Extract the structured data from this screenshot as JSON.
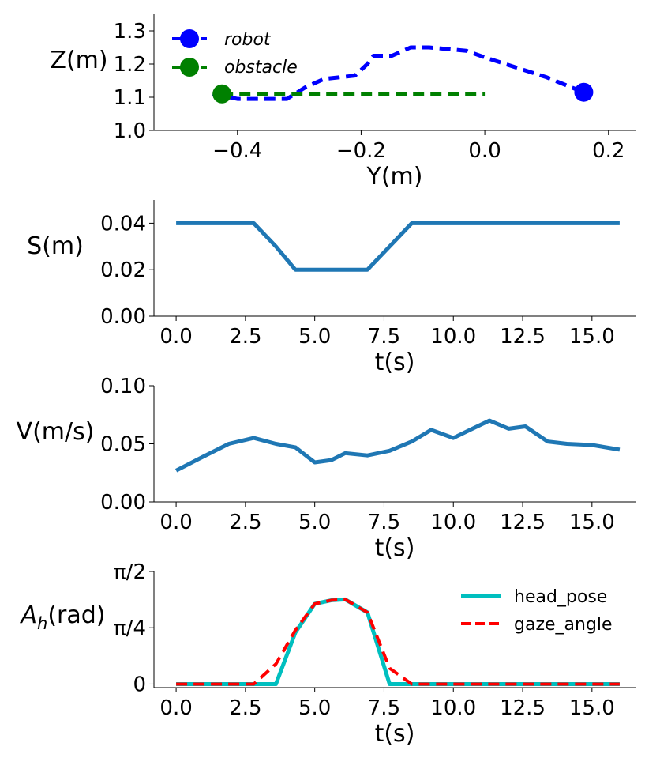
{
  "chart_data": [
    {
      "type": "line",
      "xlabel": "Y(m)",
      "ylabel": "Z(m)",
      "xlim": [
        -0.535,
        0.245
      ],
      "ylim": [
        1.0,
        1.35
      ],
      "xticks": [
        -0.4,
        -0.2,
        0.0,
        0.2
      ],
      "xtick_labels": [
        "−0.4",
        "−0.2",
        "0.0",
        "0.2"
      ],
      "yticks": [
        1.0,
        1.1,
        1.2,
        1.3
      ],
      "ytick_labels": [
        "1.0",
        "1.1",
        "1.2",
        "1.3"
      ],
      "legend_position": "top-left",
      "series": [
        {
          "name": "robot",
          "color": "#0000ff",
          "style": "dashed",
          "end_marker": "circle",
          "x": [
            -0.44,
            -0.4,
            -0.35,
            -0.32,
            -0.29,
            -0.26,
            -0.21,
            -0.19,
            -0.18,
            -0.15,
            -0.12,
            -0.09,
            -0.03,
            0.0,
            0.05,
            0.1,
            0.16
          ],
          "y": [
            1.11,
            1.095,
            1.095,
            1.095,
            1.13,
            1.155,
            1.165,
            1.2,
            1.225,
            1.225,
            1.25,
            1.25,
            1.24,
            1.22,
            1.19,
            1.16,
            1.115
          ]
        },
        {
          "name": "obstacle",
          "color": "#008000",
          "style": "dashed",
          "start_marker": "circle",
          "x": [
            -0.425,
            0.0
          ],
          "y": [
            1.11,
            1.11
          ]
        }
      ]
    },
    {
      "type": "line",
      "xlabel": "t(s)",
      "ylabel": "S(m)",
      "xlim": [
        -0.8,
        16.6
      ],
      "ylim": [
        0.0,
        0.05
      ],
      "xticks": [
        0.0,
        2.5,
        5.0,
        7.5,
        10.0,
        12.5,
        15.0
      ],
      "xtick_labels": [
        "0.0",
        "2.5",
        "5.0",
        "7.5",
        "10.0",
        "12.5",
        "15.0"
      ],
      "yticks": [
        0.0,
        0.02,
        0.04
      ],
      "ytick_labels": [
        "0.00",
        "0.02",
        "0.04"
      ],
      "series": [
        {
          "color": "#1f77b4",
          "style": "solid",
          "x": [
            0.0,
            0.85,
            1.7,
            2.8,
            3.6,
            4.3,
            5.0,
            6.0,
            6.9,
            7.7,
            8.5,
            9.3,
            10.0,
            11.0,
            12.0,
            13.0,
            14.0,
            15.0,
            16.0
          ],
          "y": [
            0.04,
            0.04,
            0.04,
            0.04,
            0.03,
            0.02,
            0.02,
            0.02,
            0.02,
            0.03,
            0.04,
            0.04,
            0.04,
            0.04,
            0.04,
            0.04,
            0.04,
            0.04,
            0.04
          ]
        }
      ]
    },
    {
      "type": "line",
      "xlabel": "t(s)",
      "ylabel": "V(m/s)",
      "xlim": [
        -0.8,
        16.6
      ],
      "ylim": [
        0.0,
        0.1
      ],
      "xticks": [
        0.0,
        2.5,
        5.0,
        7.5,
        10.0,
        12.5,
        15.0
      ],
      "xtick_labels": [
        "0.0",
        "2.5",
        "5.0",
        "7.5",
        "10.0",
        "12.5",
        "15.0"
      ],
      "yticks": [
        0.0,
        0.05,
        0.1
      ],
      "ytick_labels": [
        "0.00",
        "0.05",
        "0.10"
      ],
      "series": [
        {
          "color": "#1f77b4",
          "style": "solid",
          "x": [
            0.0,
            0.9,
            1.9,
            2.8,
            3.6,
            4.3,
            5.0,
            5.6,
            6.1,
            6.9,
            7.7,
            8.5,
            9.2,
            10.0,
            10.6,
            11.3,
            12.0,
            12.6,
            13.4,
            14.1,
            15.0,
            16.0
          ],
          "y": [
            0.027,
            0.038,
            0.05,
            0.055,
            0.05,
            0.047,
            0.034,
            0.036,
            0.042,
            0.04,
            0.044,
            0.052,
            0.062,
            0.055,
            0.062,
            0.07,
            0.063,
            0.065,
            0.052,
            0.05,
            0.049,
            0.045
          ]
        }
      ]
    },
    {
      "type": "line",
      "xlabel": "t(s)",
      "ylabel_base": "A",
      "ylabel_sub": "h",
      "ylabel_suffix": "(rad)",
      "xlim": [
        -0.8,
        16.6
      ],
      "ylim": [
        -0.05,
        1.5708
      ],
      "xticks": [
        0.0,
        2.5,
        5.0,
        7.5,
        10.0,
        12.5,
        15.0
      ],
      "xtick_labels": [
        "0.0",
        "2.5",
        "5.0",
        "7.5",
        "10.0",
        "12.5",
        "15.0"
      ],
      "yticks": [
        0.0,
        0.7854,
        1.5708
      ],
      "ytick_labels": [
        "0",
        "π/4",
        "π/2"
      ],
      "legend_position": "top-right",
      "series": [
        {
          "name": "head_pose",
          "color": "#00bfbf",
          "style": "solid",
          "x": [
            0.0,
            2.8,
            3.6,
            4.3,
            5.0,
            5.6,
            6.1,
            6.9,
            7.7,
            8.5,
            16.0
          ],
          "y": [
            0.0,
            0.0,
            0.0,
            0.72,
            1.12,
            1.17,
            1.18,
            1.0,
            0.0,
            0.0,
            0.0
          ]
        },
        {
          "name": "gaze_angle",
          "color": "#ff0000",
          "style": "dashed",
          "x": [
            0.0,
            2.8,
            3.6,
            4.3,
            5.0,
            5.6,
            6.1,
            6.9,
            7.7,
            8.5,
            16.0
          ],
          "y": [
            0.0,
            0.0,
            0.28,
            0.75,
            1.12,
            1.17,
            1.18,
            1.0,
            0.22,
            0.0,
            0.0
          ]
        }
      ]
    }
  ]
}
